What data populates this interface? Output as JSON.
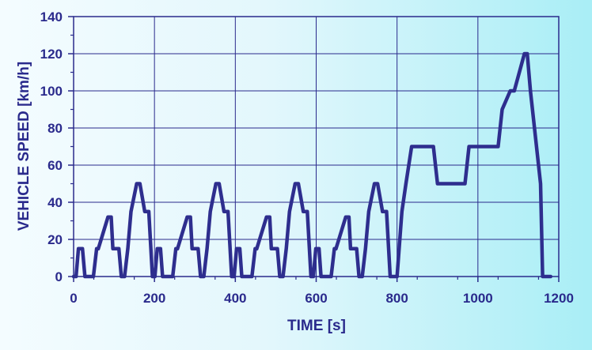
{
  "chart_data": {
    "type": "line",
    "title": "",
    "xlabel": "TIME [s]",
    "ylabel": "VEHICLE SPEED [km/h]",
    "xlim": [
      0,
      1200
    ],
    "ylim": [
      0,
      140
    ],
    "xticks": [
      0,
      200,
      400,
      600,
      800,
      1000,
      1200
    ],
    "yticks": [
      0,
      20,
      40,
      60,
      80,
      100,
      120,
      140
    ],
    "grid": true,
    "legend": "none",
    "colors": {
      "line": "#2e2e8e",
      "grid": "#2a2a8c",
      "text": "#2a2a8c"
    },
    "series": [
      {
        "x": [
          0,
          6,
          12,
          22,
          28,
          49,
          57,
          61,
          85,
          93,
          97,
          112,
          118,
          126,
          134,
          142,
          156,
          164,
          176,
          186,
          195,
          201,
          207,
          215,
          220,
          245,
          253,
          257,
          281,
          289,
          293,
          308,
          314,
          322,
          330,
          338,
          352,
          360,
          372,
          382,
          391,
          397,
          403,
          411,
          416,
          441,
          449,
          453,
          477,
          485,
          489,
          504,
          510,
          518,
          526,
          534,
          548,
          556,
          568,
          578,
          587,
          593,
          599,
          607,
          612,
          637,
          645,
          649,
          673,
          681,
          685,
          700,
          706,
          714,
          722,
          730,
          744,
          752,
          764,
          774,
          783,
          789,
          800,
          812,
          822,
          836,
          848,
          890,
          900,
          918,
          968,
          978,
          1020,
          1050,
          1060,
          1080,
          1090,
          1115,
          1122,
          1130,
          1155,
          1160,
          1165,
          1180
        ],
        "y": [
          0,
          0,
          15,
          15,
          0,
          0,
          15,
          15,
          32,
          32,
          15,
          15,
          0,
          0,
          15,
          35,
          50,
          50,
          35,
          35,
          0,
          0,
          15,
          15,
          0,
          0,
          15,
          15,
          32,
          32,
          15,
          15,
          0,
          0,
          15,
          35,
          50,
          50,
          35,
          35,
          0,
          0,
          15,
          15,
          0,
          0,
          15,
          15,
          32,
          32,
          15,
          15,
          0,
          0,
          15,
          35,
          50,
          50,
          35,
          35,
          0,
          0,
          15,
          15,
          0,
          0,
          15,
          15,
          32,
          32,
          15,
          15,
          0,
          0,
          15,
          35,
          50,
          50,
          35,
          35,
          0,
          0,
          0,
          35,
          50,
          70,
          70,
          70,
          50,
          50,
          50,
          70,
          70,
          70,
          90,
          100,
          100,
          120,
          120,
          100,
          50,
          0,
          0,
          0
        ]
      }
    ]
  }
}
